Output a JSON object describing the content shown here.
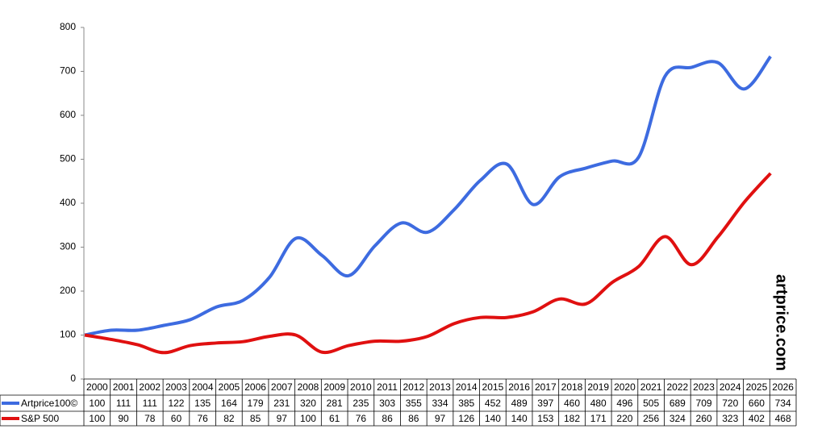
{
  "chart_data": {
    "type": "line",
    "categories": [
      "2000",
      "2001",
      "2002",
      "2003",
      "2004",
      "2005",
      "2006",
      "2007",
      "2008",
      "2009",
      "2010",
      "2011",
      "2012",
      "2013",
      "2014",
      "2015",
      "2016",
      "2017",
      "2018",
      "2019",
      "2020",
      "2021",
      "2022",
      "2023",
      "2024",
      "2025",
      "2026"
    ],
    "series": [
      {
        "name": "Artprice100©",
        "color": "#3d6be0",
        "values": [
          100,
          111,
          111,
          122,
          135,
          164,
          179,
          231,
          320,
          281,
          235,
          303,
          355,
          334,
          385,
          452,
          489,
          397,
          460,
          480,
          496,
          505,
          689,
          709,
          720,
          660,
          734
        ]
      },
      {
        "name": "S&P 500",
        "color": "#e01010",
        "values": [
          100,
          90,
          78,
          60,
          76,
          82,
          85,
          97,
          100,
          61,
          76,
          86,
          86,
          97,
          126,
          140,
          140,
          153,
          182,
          171,
          220,
          256,
          324,
          260,
          323,
          402,
          468
        ]
      }
    ],
    "ylim": [
      0,
      800
    ],
    "yticks": [
      0,
      100,
      200,
      300,
      400,
      500,
      600,
      700,
      800
    ],
    "annotation": "artprice.com"
  }
}
